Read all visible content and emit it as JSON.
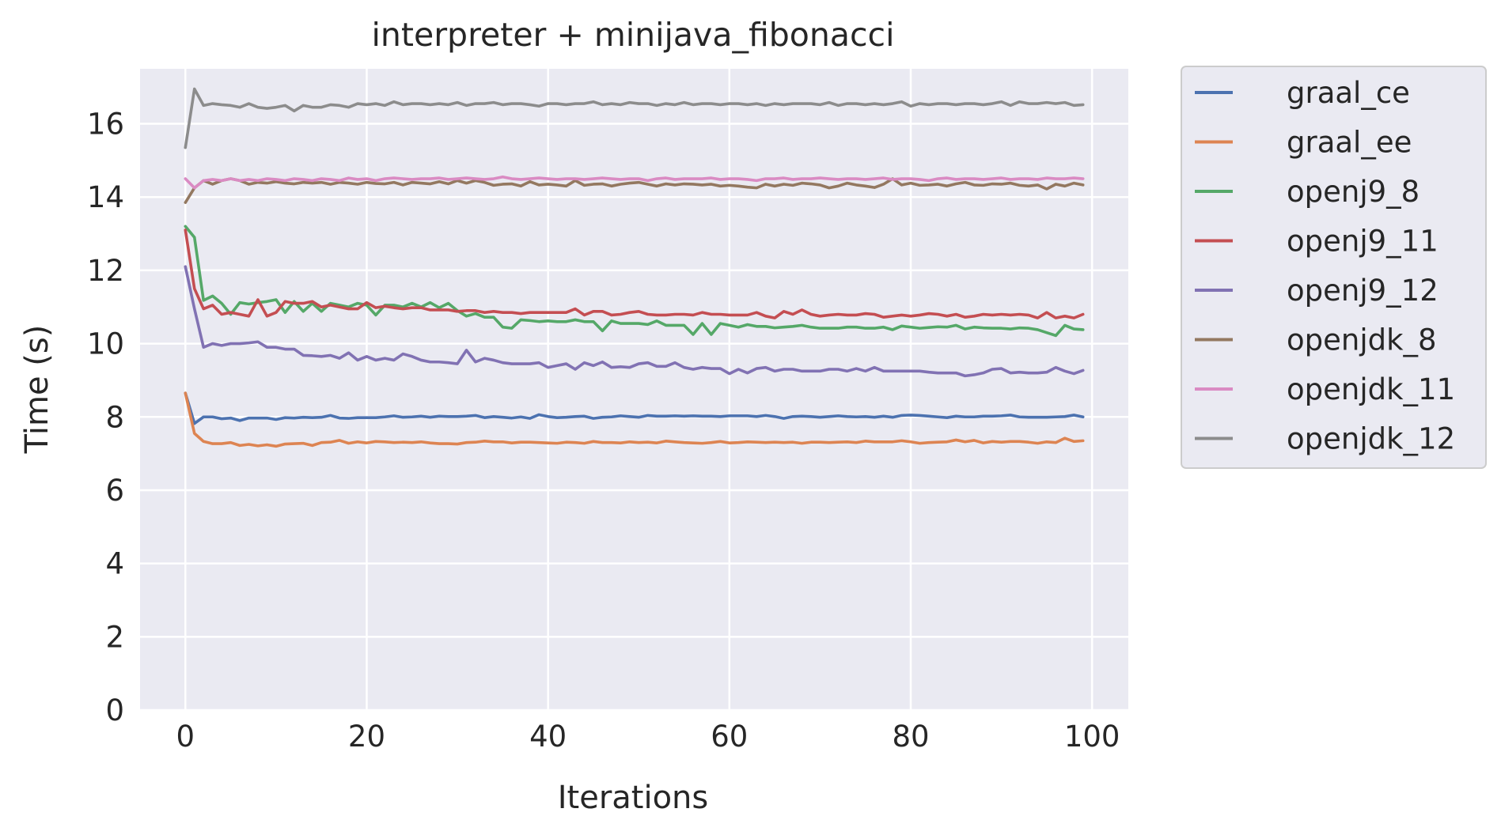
{
  "chart_data": {
    "type": "line",
    "title": "interpreter + minijava_fibonacci",
    "xlabel": "Iterations",
    "ylabel": "Time (s)",
    "xlim": [
      -5,
      104
    ],
    "ylim": [
      0,
      17.5
    ],
    "xticks": [
      "0",
      "20",
      "40",
      "60",
      "80",
      "100"
    ],
    "yticks": [
      "0",
      "2",
      "4",
      "6",
      "8",
      "10",
      "12",
      "14",
      "16"
    ],
    "grid": true,
    "legend_position": "outside-right",
    "series": [
      {
        "name": "graal_ce",
        "color": "#4c72b0",
        "values": [
          8.65,
          7.82,
          8.0,
          8.0,
          7.95,
          7.97,
          7.9,
          7.97,
          7.97,
          7.97,
          7.93,
          7.98,
          7.97,
          7.99,
          7.98,
          7.99,
          8.04,
          7.97,
          7.96,
          7.98,
          7.98,
          7.98,
          8.0,
          8.03,
          7.99,
          8.0,
          8.02,
          7.99,
          8.02,
          8.01,
          8.01,
          8.02,
          8.04,
          7.98,
          8.01,
          7.99,
          7.97,
          8.0,
          7.96,
          8.06,
          8.01,
          7.98,
          7.99,
          8.01,
          8.02,
          7.96,
          7.99,
          8.0,
          8.03,
          8.01,
          7.99,
          8.04,
          8.02,
          8.02,
          8.03,
          8.02,
          8.03,
          8.02,
          8.02,
          8.01,
          8.03,
          8.03,
          8.03,
          8.01,
          8.04,
          8.01,
          7.96,
          8.01,
          8.02,
          8.01,
          7.99,
          8.01,
          8.03,
          8.01,
          8.0,
          8.01,
          7.99,
          8.02,
          7.99,
          8.04,
          8.05,
          8.04,
          8.02,
          8.0,
          7.98,
          8.02,
          8.0,
          8.0,
          8.02,
          8.02,
          8.03,
          8.05,
          8.0,
          7.99,
          7.99,
          7.99,
          8.0,
          8.01,
          8.05,
          8.0
        ]
      },
      {
        "name": "graal_ee",
        "color": "#dd8452",
        "values": [
          8.65,
          7.55,
          7.33,
          7.27,
          7.27,
          7.3,
          7.22,
          7.25,
          7.21,
          7.24,
          7.2,
          7.26,
          7.27,
          7.28,
          7.22,
          7.3,
          7.31,
          7.36,
          7.28,
          7.32,
          7.29,
          7.33,
          7.32,
          7.3,
          7.31,
          7.3,
          7.32,
          7.29,
          7.27,
          7.27,
          7.26,
          7.3,
          7.31,
          7.34,
          7.32,
          7.32,
          7.29,
          7.31,
          7.31,
          7.3,
          7.29,
          7.28,
          7.31,
          7.3,
          7.28,
          7.33,
          7.3,
          7.3,
          7.29,
          7.32,
          7.3,
          7.31,
          7.29,
          7.34,
          7.32,
          7.3,
          7.29,
          7.28,
          7.3,
          7.33,
          7.29,
          7.3,
          7.32,
          7.31,
          7.3,
          7.31,
          7.3,
          7.31,
          7.28,
          7.31,
          7.31,
          7.3,
          7.31,
          7.32,
          7.3,
          7.34,
          7.32,
          7.32,
          7.32,
          7.35,
          7.32,
          7.28,
          7.3,
          7.31,
          7.32,
          7.37,
          7.32,
          7.36,
          7.29,
          7.33,
          7.31,
          7.33,
          7.33,
          7.31,
          7.28,
          7.32,
          7.3,
          7.42,
          7.33,
          7.35
        ]
      },
      {
        "name": "openj9_8",
        "color": "#55a868",
        "values": [
          13.2,
          12.9,
          11.18,
          11.3,
          11.1,
          10.8,
          11.12,
          11.08,
          11.12,
          11.15,
          11.2,
          10.85,
          11.15,
          10.88,
          11.1,
          10.88,
          11.1,
          11.05,
          11.0,
          11.1,
          11.05,
          10.78,
          11.05,
          11.05,
          11.0,
          11.1,
          11.0,
          11.12,
          10.98,
          11.1,
          10.9,
          10.75,
          10.82,
          10.72,
          10.72,
          10.45,
          10.42,
          10.65,
          10.63,
          10.6,
          10.62,
          10.6,
          10.6,
          10.65,
          10.6,
          10.6,
          10.35,
          10.62,
          10.55,
          10.55,
          10.55,
          10.52,
          10.62,
          10.5,
          10.5,
          10.5,
          10.25,
          10.55,
          10.25,
          10.55,
          10.5,
          10.45,
          10.52,
          10.47,
          10.47,
          10.43,
          10.45,
          10.47,
          10.5,
          10.45,
          10.42,
          10.42,
          10.42,
          10.45,
          10.45,
          10.42,
          10.42,
          10.45,
          10.38,
          10.48,
          10.45,
          10.42,
          10.44,
          10.46,
          10.45,
          10.5,
          10.4,
          10.45,
          10.43,
          10.42,
          10.42,
          10.4,
          10.43,
          10.42,
          10.38,
          10.3,
          10.22,
          10.5,
          10.4,
          10.38
        ]
      },
      {
        "name": "openj9_11",
        "color": "#c44e52",
        "values": [
          13.1,
          11.5,
          10.95,
          11.05,
          10.8,
          10.85,
          10.8,
          10.75,
          11.2,
          10.75,
          10.85,
          11.15,
          11.1,
          11.1,
          11.15,
          11.0,
          11.05,
          11.0,
          10.95,
          10.95,
          11.12,
          10.98,
          11.02,
          10.98,
          10.95,
          10.98,
          10.98,
          10.92,
          10.92,
          10.92,
          10.88,
          10.9,
          10.9,
          10.85,
          10.88,
          10.85,
          10.85,
          10.82,
          10.85,
          10.85,
          10.85,
          10.85,
          10.85,
          10.95,
          10.78,
          10.88,
          10.88,
          10.78,
          10.8,
          10.85,
          10.88,
          10.8,
          10.78,
          10.78,
          10.8,
          10.8,
          10.78,
          10.85,
          10.8,
          10.8,
          10.78,
          10.78,
          10.78,
          10.85,
          10.75,
          10.7,
          10.88,
          10.8,
          10.92,
          10.8,
          10.75,
          10.78,
          10.8,
          10.78,
          10.78,
          10.82,
          10.8,
          10.72,
          10.75,
          10.78,
          10.75,
          10.78,
          10.82,
          10.8,
          10.75,
          10.8,
          10.72,
          10.75,
          10.8,
          10.78,
          10.8,
          10.78,
          10.8,
          10.78,
          10.7,
          10.85,
          10.7,
          10.75,
          10.7,
          10.8
        ]
      },
      {
        "name": "openj9_12",
        "color": "#8172b3",
        "values": [
          12.1,
          10.95,
          9.9,
          10.0,
          9.95,
          10.0,
          10.0,
          10.02,
          10.05,
          9.9,
          9.9,
          9.85,
          9.85,
          9.68,
          9.67,
          9.65,
          9.68,
          9.6,
          9.75,
          9.55,
          9.65,
          9.55,
          9.6,
          9.55,
          9.72,
          9.65,
          9.55,
          9.5,
          9.5,
          9.48,
          9.45,
          9.82,
          9.5,
          9.6,
          9.55,
          9.48,
          9.45,
          9.45,
          9.45,
          9.48,
          9.35,
          9.4,
          9.45,
          9.3,
          9.48,
          9.4,
          9.5,
          9.35,
          9.37,
          9.35,
          9.45,
          9.48,
          9.38,
          9.38,
          9.48,
          9.35,
          9.3,
          9.35,
          9.32,
          9.32,
          9.18,
          9.3,
          9.2,
          9.32,
          9.35,
          9.25,
          9.3,
          9.3,
          9.25,
          9.25,
          9.25,
          9.3,
          9.3,
          9.25,
          9.32,
          9.25,
          9.35,
          9.25,
          9.25,
          9.25,
          9.25,
          9.25,
          9.22,
          9.2,
          9.2,
          9.2,
          9.12,
          9.15,
          9.2,
          9.3,
          9.32,
          9.2,
          9.22,
          9.2,
          9.2,
          9.22,
          9.35,
          9.25,
          9.18,
          9.27
        ]
      },
      {
        "name": "openjdk_8",
        "color": "#937860",
        "values": [
          13.85,
          14.25,
          14.45,
          14.35,
          14.45,
          14.5,
          14.45,
          14.35,
          14.4,
          14.38,
          14.42,
          14.38,
          14.36,
          14.4,
          14.38,
          14.4,
          14.35,
          14.4,
          14.38,
          14.35,
          14.4,
          14.37,
          14.36,
          14.4,
          14.33,
          14.4,
          14.38,
          14.36,
          14.42,
          14.36,
          14.45,
          14.38,
          14.45,
          14.4,
          14.32,
          14.35,
          14.36,
          14.3,
          14.42,
          14.33,
          14.35,
          14.33,
          14.3,
          14.45,
          14.32,
          14.35,
          14.36,
          14.3,
          14.35,
          14.38,
          14.4,
          14.35,
          14.3,
          14.36,
          14.33,
          14.36,
          14.35,
          14.33,
          14.35,
          14.3,
          14.32,
          14.3,
          14.27,
          14.25,
          14.35,
          14.3,
          14.35,
          14.32,
          14.38,
          14.36,
          14.33,
          14.25,
          14.3,
          14.38,
          14.33,
          14.3,
          14.26,
          14.35,
          14.5,
          14.33,
          14.38,
          14.32,
          14.33,
          14.35,
          14.3,
          14.36,
          14.4,
          14.33,
          14.32,
          14.36,
          14.35,
          14.38,
          14.32,
          14.3,
          14.33,
          14.22,
          14.35,
          14.3,
          14.38,
          14.33
        ]
      },
      {
        "name": "openjdk_11",
        "color": "#da8bc3",
        "values": [
          14.5,
          14.25,
          14.45,
          14.48,
          14.45,
          14.5,
          14.45,
          14.48,
          14.45,
          14.5,
          14.48,
          14.45,
          14.5,
          14.48,
          14.45,
          14.5,
          14.48,
          14.45,
          14.52,
          14.48,
          14.5,
          14.45,
          14.5,
          14.52,
          14.5,
          14.48,
          14.5,
          14.5,
          14.52,
          14.48,
          14.5,
          14.52,
          14.5,
          14.48,
          14.5,
          14.55,
          14.5,
          14.48,
          14.5,
          14.52,
          14.5,
          14.48,
          14.5,
          14.5,
          14.48,
          14.5,
          14.52,
          14.5,
          14.48,
          14.5,
          14.5,
          14.45,
          14.5,
          14.52,
          14.48,
          14.5,
          14.5,
          14.5,
          14.52,
          14.48,
          14.5,
          14.5,
          14.48,
          14.45,
          14.5,
          14.5,
          14.52,
          14.48,
          14.5,
          14.5,
          14.52,
          14.5,
          14.48,
          14.5,
          14.5,
          14.48,
          14.5,
          14.52,
          14.48,
          14.5,
          14.5,
          14.48,
          14.45,
          14.5,
          14.52,
          14.48,
          14.5,
          14.5,
          14.48,
          14.5,
          14.52,
          14.48,
          14.5,
          14.5,
          14.48,
          14.52,
          14.5,
          14.5,
          14.52,
          14.5
        ]
      },
      {
        "name": "openjdk_12",
        "color": "#8c8c8c",
        "values": [
          15.35,
          16.95,
          16.5,
          16.55,
          16.52,
          16.5,
          16.45,
          16.55,
          16.45,
          16.42,
          16.45,
          16.5,
          16.35,
          16.5,
          16.45,
          16.45,
          16.52,
          16.5,
          16.45,
          16.55,
          16.52,
          16.55,
          16.5,
          16.6,
          16.52,
          16.55,
          16.55,
          16.52,
          16.55,
          16.52,
          16.58,
          16.5,
          16.55,
          16.55,
          16.58,
          16.52,
          16.55,
          16.55,
          16.52,
          16.48,
          16.55,
          16.55,
          16.52,
          16.55,
          16.55,
          16.6,
          16.52,
          16.55,
          16.52,
          16.58,
          16.55,
          16.55,
          16.5,
          16.55,
          16.52,
          16.58,
          16.52,
          16.55,
          16.55,
          16.52,
          16.55,
          16.55,
          16.52,
          16.55,
          16.5,
          16.55,
          16.52,
          16.55,
          16.55,
          16.55,
          16.52,
          16.58,
          16.5,
          16.55,
          16.55,
          16.52,
          16.55,
          16.52,
          16.55,
          16.6,
          16.48,
          16.55,
          16.52,
          16.55,
          16.55,
          16.52,
          16.55,
          16.55,
          16.52,
          16.55,
          16.6,
          16.5,
          16.6,
          16.55,
          16.55,
          16.58,
          16.55,
          16.58,
          16.5,
          16.52
        ]
      }
    ]
  }
}
